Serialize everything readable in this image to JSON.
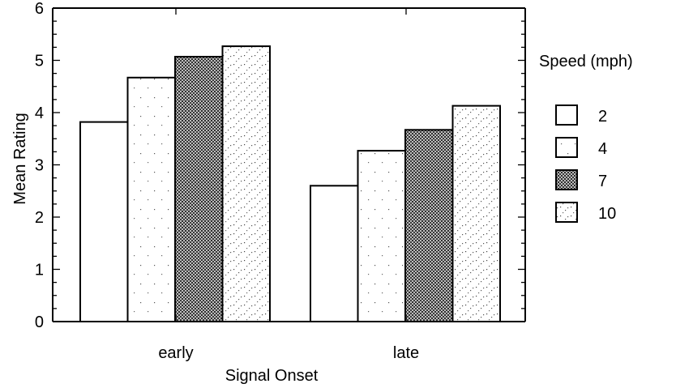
{
  "chart_data": {
    "type": "bar",
    "title": "",
    "xlabel": "Signal Onset",
    "ylabel": "Mean Rating",
    "categories": [
      "early",
      "late"
    ],
    "ylim": [
      0,
      6
    ],
    "yticks": [
      0,
      1,
      2,
      3,
      4,
      5,
      6
    ],
    "grid": false,
    "legend": {
      "title": "Speed (mph)",
      "placement": "right"
    },
    "series": [
      {
        "name": "2",
        "values": [
          3.82,
          2.6
        ],
        "pattern": "white"
      },
      {
        "name": "4",
        "values": [
          4.67,
          3.27
        ],
        "pattern": "sparse-dots"
      },
      {
        "name": "7",
        "values": [
          5.07,
          3.67
        ],
        "pattern": "dark-crosshatch"
      },
      {
        "name": "10",
        "values": [
          5.27,
          4.13
        ],
        "pattern": "dense-dots"
      }
    ]
  }
}
